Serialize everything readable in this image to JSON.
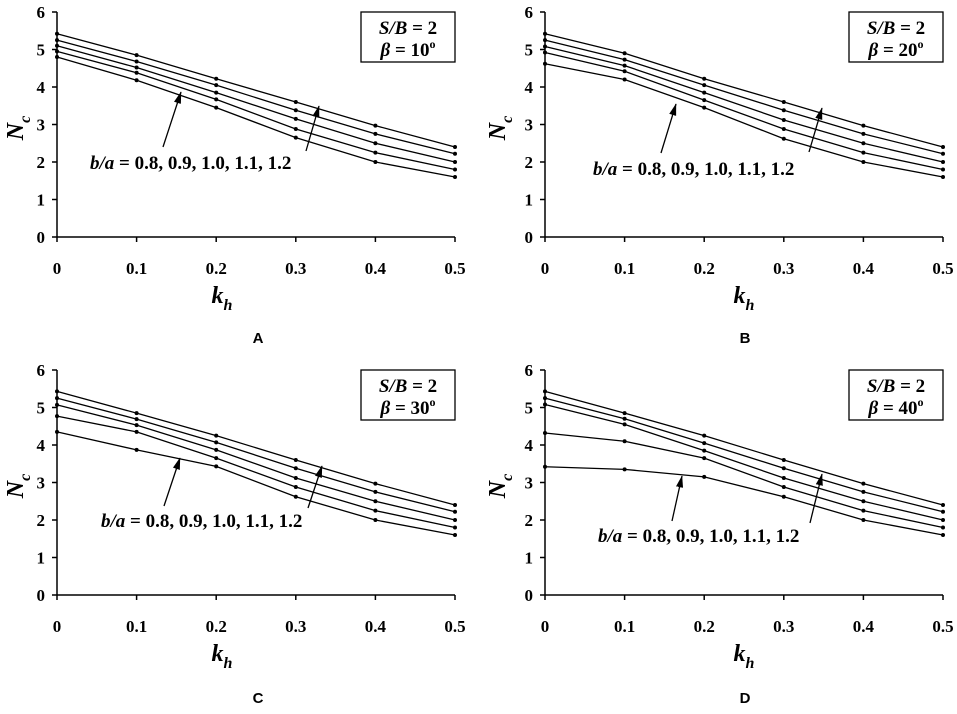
{
  "chart_data": [
    {
      "panel_label": "A",
      "type": "line",
      "x": [
        0,
        0.1,
        0.2,
        0.3,
        0.4,
        0.5
      ],
      "x_tick_labels": [
        "0",
        "0.1",
        "0.2",
        "0.3",
        "0.4",
        "0.5"
      ],
      "y_tick_labels": [
        "0",
        "1",
        "2",
        "3",
        "4",
        "5",
        "6"
      ],
      "xlim": [
        0,
        0.5
      ],
      "ylim": [
        0,
        6
      ],
      "xlabel": "k",
      "xlabel_sub": "h",
      "ylabel": "N",
      "ylabel_sub": "c",
      "grid": false,
      "legend_placement": "top-right",
      "legend": {
        "line1": {
          "var": "S/B",
          "rest": " = 2"
        },
        "line2": {
          "var": "β",
          "rest": " = 10",
          "sup": "o"
        }
      },
      "annotation": {
        "var": "b/a",
        "values": " = 0.8, 0.9, 1.0, 1.1, 1.2"
      },
      "series": [
        {
          "values": [
            4.8,
            4.18,
            3.45,
            2.65,
            2.0,
            1.6
          ]
        },
        {
          "values": [
            4.95,
            4.38,
            3.67,
            2.88,
            2.25,
            1.8
          ]
        },
        {
          "values": [
            5.1,
            4.52,
            3.85,
            3.15,
            2.5,
            2.0
          ]
        },
        {
          "values": [
            5.25,
            4.68,
            4.05,
            3.38,
            2.75,
            2.22
          ]
        },
        {
          "values": [
            5.42,
            4.85,
            4.22,
            3.6,
            2.97,
            2.4
          ]
        }
      ]
    },
    {
      "panel_label": "B",
      "type": "line",
      "x": [
        0,
        0.1,
        0.2,
        0.3,
        0.4,
        0.5
      ],
      "x_tick_labels": [
        "0",
        "0.1",
        "0.2",
        "0.3",
        "0.4",
        "0.5"
      ],
      "y_tick_labels": [
        "0",
        "1",
        "2",
        "3",
        "4",
        "5",
        "6"
      ],
      "xlim": [
        0,
        0.5
      ],
      "ylim": [
        0,
        6
      ],
      "xlabel": "k",
      "xlabel_sub": "h",
      "ylabel": "N",
      "ylabel_sub": "c",
      "grid": false,
      "legend_placement": "top-right",
      "legend": {
        "line1": {
          "var": "S/B",
          "rest": " = 2"
        },
        "line2": {
          "var": "β",
          "rest": " = 20",
          "sup": "o"
        }
      },
      "annotation": {
        "var": "b/a",
        "values": " = 0.8, 0.9, 1.0, 1.1, 1.2"
      },
      "series": [
        {
          "values": [
            4.62,
            4.2,
            3.45,
            2.62,
            2.0,
            1.6
          ]
        },
        {
          "values": [
            4.92,
            4.42,
            3.65,
            2.88,
            2.25,
            1.8
          ]
        },
        {
          "values": [
            5.08,
            4.57,
            3.85,
            3.12,
            2.5,
            2.0
          ]
        },
        {
          "values": [
            5.25,
            4.73,
            4.05,
            3.38,
            2.75,
            2.22
          ]
        },
        {
          "values": [
            5.42,
            4.9,
            4.22,
            3.6,
            2.97,
            2.4
          ]
        }
      ]
    },
    {
      "panel_label": "C",
      "type": "line",
      "x": [
        0,
        0.1,
        0.2,
        0.3,
        0.4,
        0.5
      ],
      "x_tick_labels": [
        "0",
        "0.1",
        "0.2",
        "0.3",
        "0.4",
        "0.5"
      ],
      "y_tick_labels": [
        "0",
        "1",
        "2",
        "3",
        "4",
        "5",
        "6"
      ],
      "xlim": [
        0,
        0.5
      ],
      "ylim": [
        0,
        6
      ],
      "xlabel": "k",
      "xlabel_sub": "h",
      "ylabel": "N",
      "ylabel_sub": "c",
      "grid": false,
      "legend_placement": "top-right",
      "legend": {
        "line1": {
          "var": "S/B",
          "rest": " = 2"
        },
        "line2": {
          "var": "β",
          "rest": " = 30",
          "sup": "o"
        }
      },
      "annotation": {
        "var": "b/a",
        "values": " = 0.8, 0.9, 1.0, 1.1, 1.2"
      },
      "series": [
        {
          "values": [
            4.35,
            3.87,
            3.43,
            2.62,
            2.0,
            1.6
          ]
        },
        {
          "values": [
            4.77,
            4.35,
            3.65,
            2.88,
            2.25,
            1.8
          ]
        },
        {
          "values": [
            5.07,
            4.53,
            3.87,
            3.12,
            2.5,
            2.0
          ]
        },
        {
          "values": [
            5.25,
            4.69,
            4.07,
            3.38,
            2.75,
            2.22
          ]
        },
        {
          "values": [
            5.43,
            4.85,
            4.25,
            3.6,
            2.97,
            2.4
          ]
        }
      ]
    },
    {
      "panel_label": "D",
      "type": "line",
      "x": [
        0,
        0.1,
        0.2,
        0.3,
        0.4,
        0.5
      ],
      "x_tick_labels": [
        "0",
        "0.1",
        "0.2",
        "0.3",
        "0.4",
        "0.5"
      ],
      "y_tick_labels": [
        "0",
        "1",
        "2",
        "3",
        "4",
        "5",
        "6"
      ],
      "xlim": [
        0,
        0.5
      ],
      "ylim": [
        0,
        6
      ],
      "xlabel": "k",
      "xlabel_sub": "h",
      "ylabel": "N",
      "ylabel_sub": "c",
      "grid": false,
      "legend_placement": "top-right",
      "legend": {
        "line1": {
          "var": "S/B",
          "rest": " = 2"
        },
        "line2": {
          "var": "β",
          "rest": " = 40",
          "sup": "o"
        }
      },
      "annotation": {
        "var": "b/a",
        "values": " = 0.8, 0.9, 1.0, 1.1, 1.2"
      },
      "series": [
        {
          "values": [
            3.42,
            3.35,
            3.15,
            2.62,
            2.0,
            1.6
          ]
        },
        {
          "values": [
            4.32,
            4.1,
            3.65,
            2.88,
            2.25,
            1.8
          ]
        },
        {
          "values": [
            5.08,
            4.55,
            3.85,
            3.12,
            2.5,
            2.0
          ]
        },
        {
          "values": [
            5.25,
            4.7,
            4.05,
            3.38,
            2.75,
            2.22
          ]
        },
        {
          "values": [
            5.43,
            4.85,
            4.25,
            3.6,
            2.97,
            2.4
          ]
        }
      ]
    }
  ]
}
